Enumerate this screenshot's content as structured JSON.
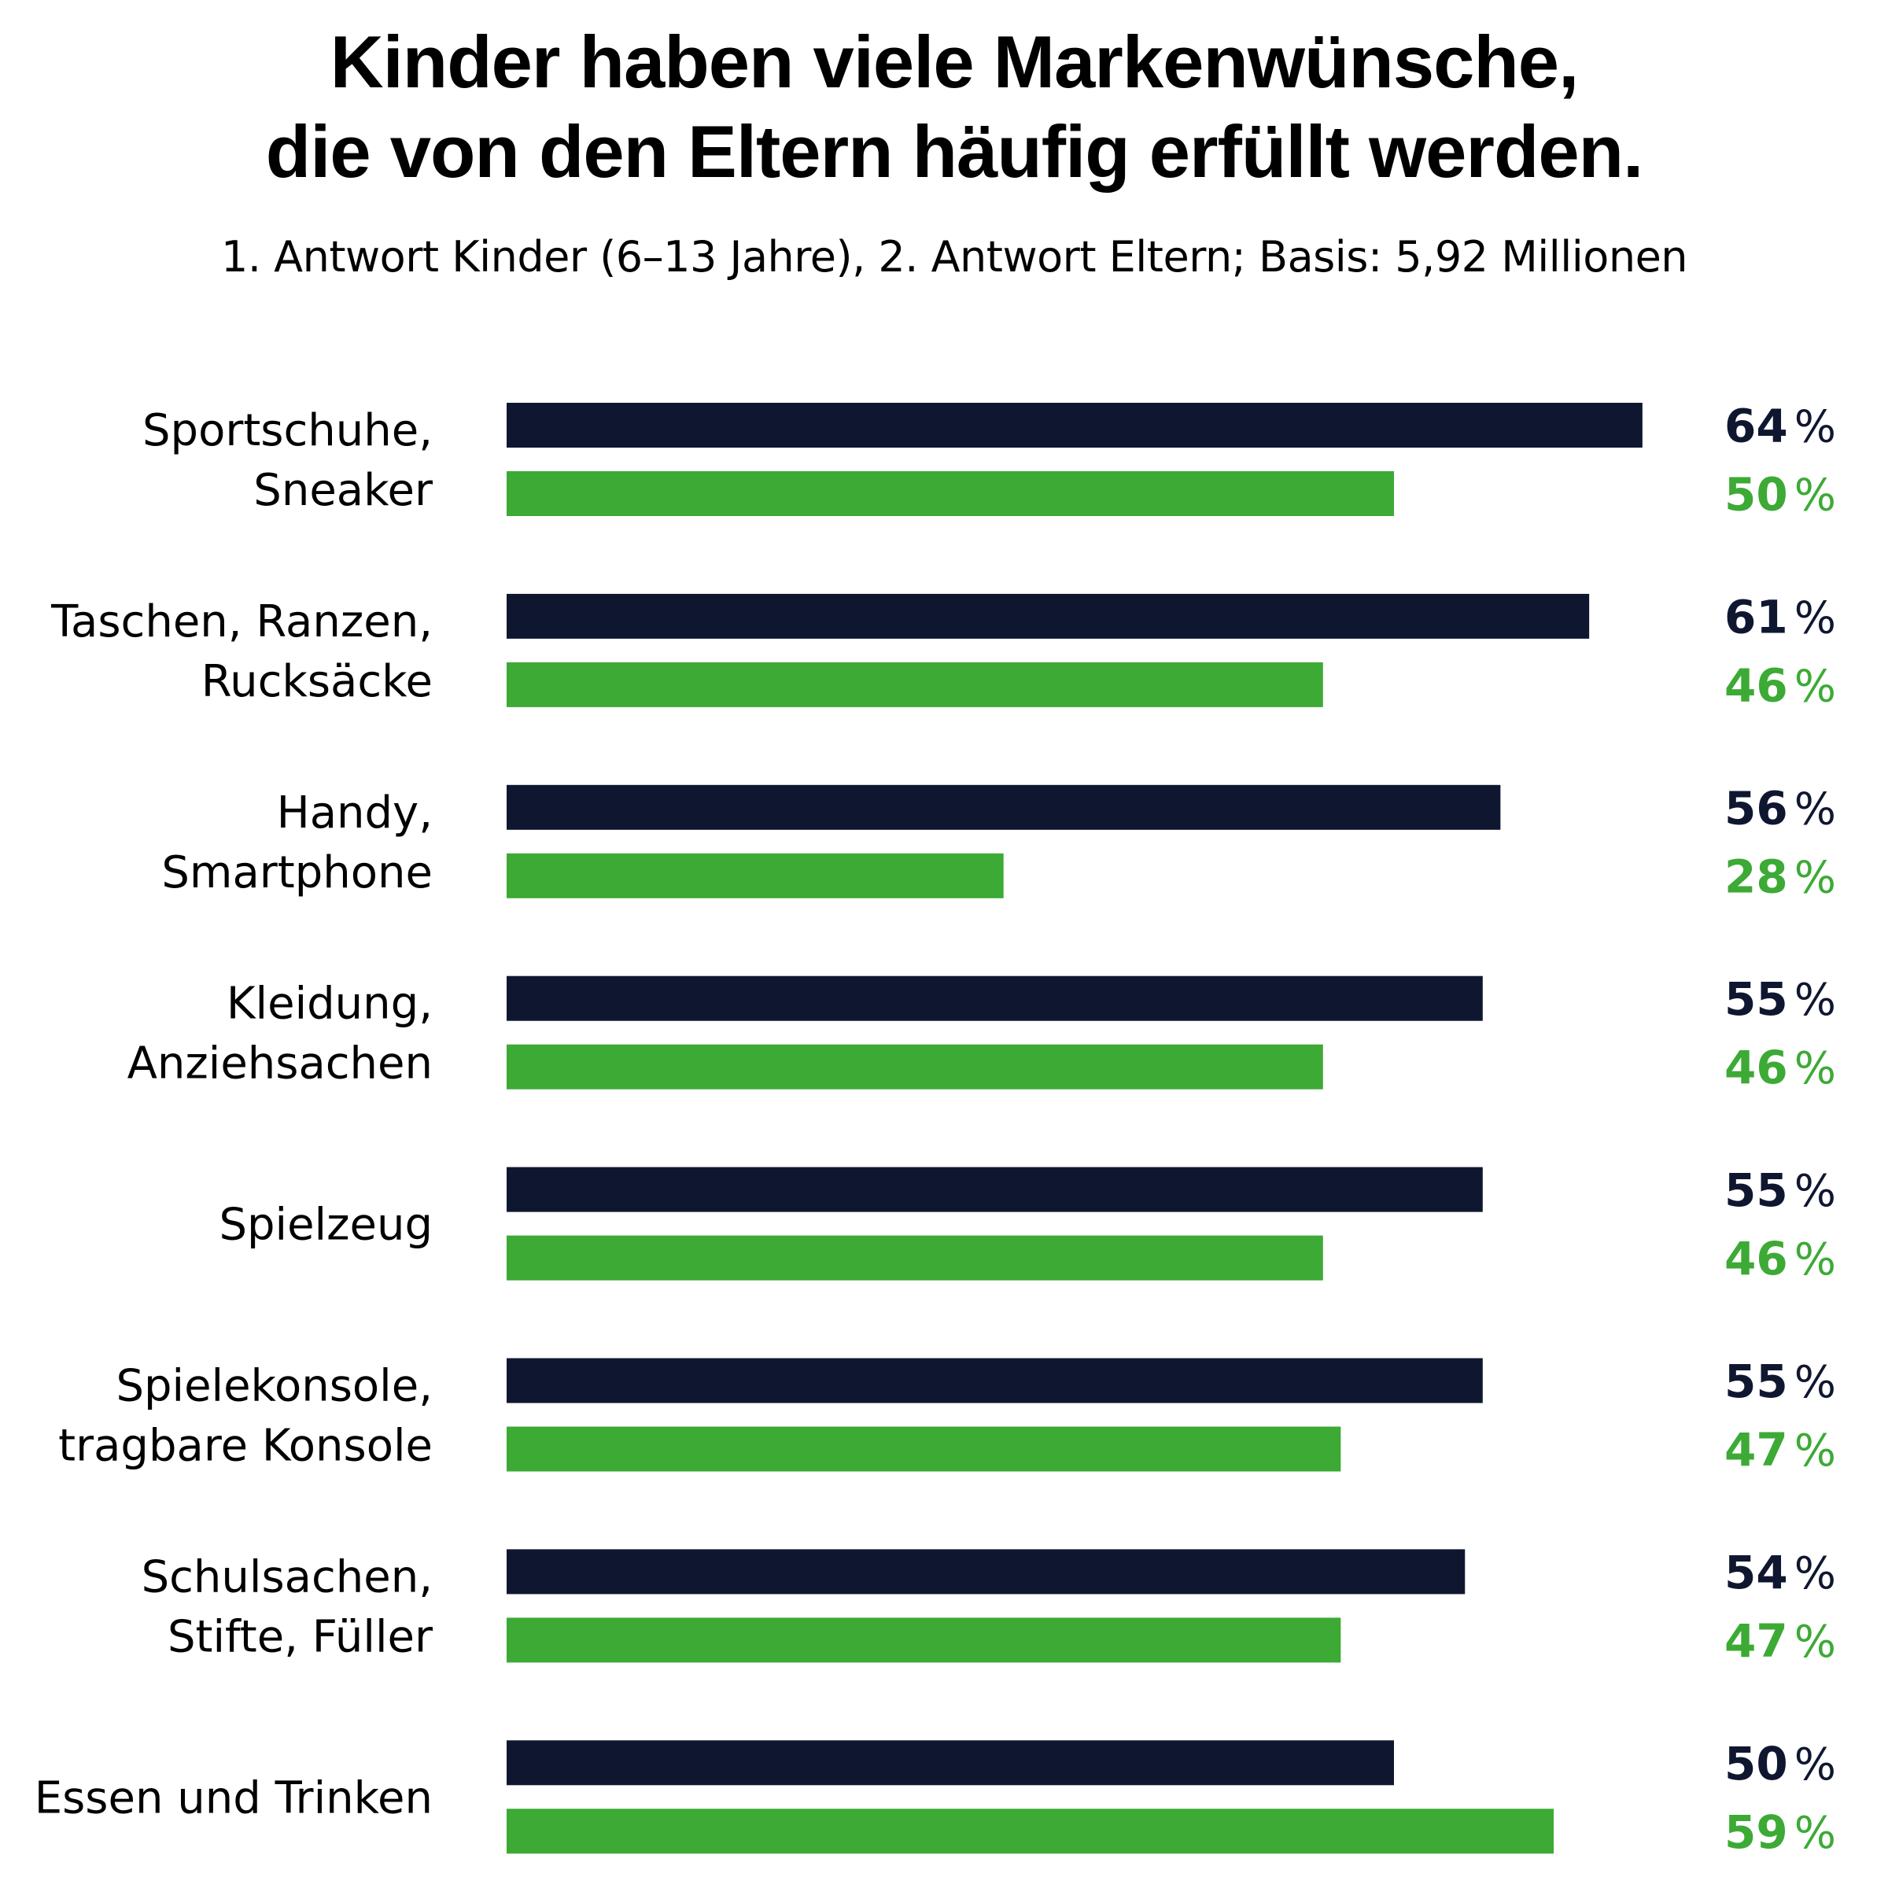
{
  "chart_data": {
    "type": "bar",
    "orientation": "horizontal",
    "title": [
      "Kinder haben viele Markenwünsche,",
      "die von den Eltern häufig erfüllt werden."
    ],
    "subtitle": "1. Antwort Kinder (6–13 Jahre), 2. Antwort Eltern; Basis: 5,92 Millionen",
    "xlabel": "",
    "ylabel": "",
    "xlim": [
      0,
      64
    ],
    "grid": false,
    "unit": "%",
    "categories": [
      [
        "Sportschuhe,",
        "Sneaker"
      ],
      [
        "Taschen, Ranzen,",
        "Rucksäcke"
      ],
      [
        "Handy,",
        "Smartphone"
      ],
      [
        "Kleidung,",
        "Anziehsachen"
      ],
      [
        "Spielzeug"
      ],
      [
        "Spielekonsole,",
        "tragbare Konsole"
      ],
      [
        "Schulsachen,",
        "Stifte, Füller"
      ],
      [
        "Essen und Trinken"
      ]
    ],
    "series": [
      {
        "name": "1. Antwort Kinder (6–13 Jahre)",
        "color": "#0f1730",
        "values": [
          64,
          61,
          56,
          55,
          55,
          55,
          54,
          50
        ]
      },
      {
        "name": "2. Antwort Eltern",
        "color": "#3caa35",
        "values": [
          50,
          46,
          28,
          46,
          46,
          47,
          47,
          59
        ]
      }
    ]
  }
}
